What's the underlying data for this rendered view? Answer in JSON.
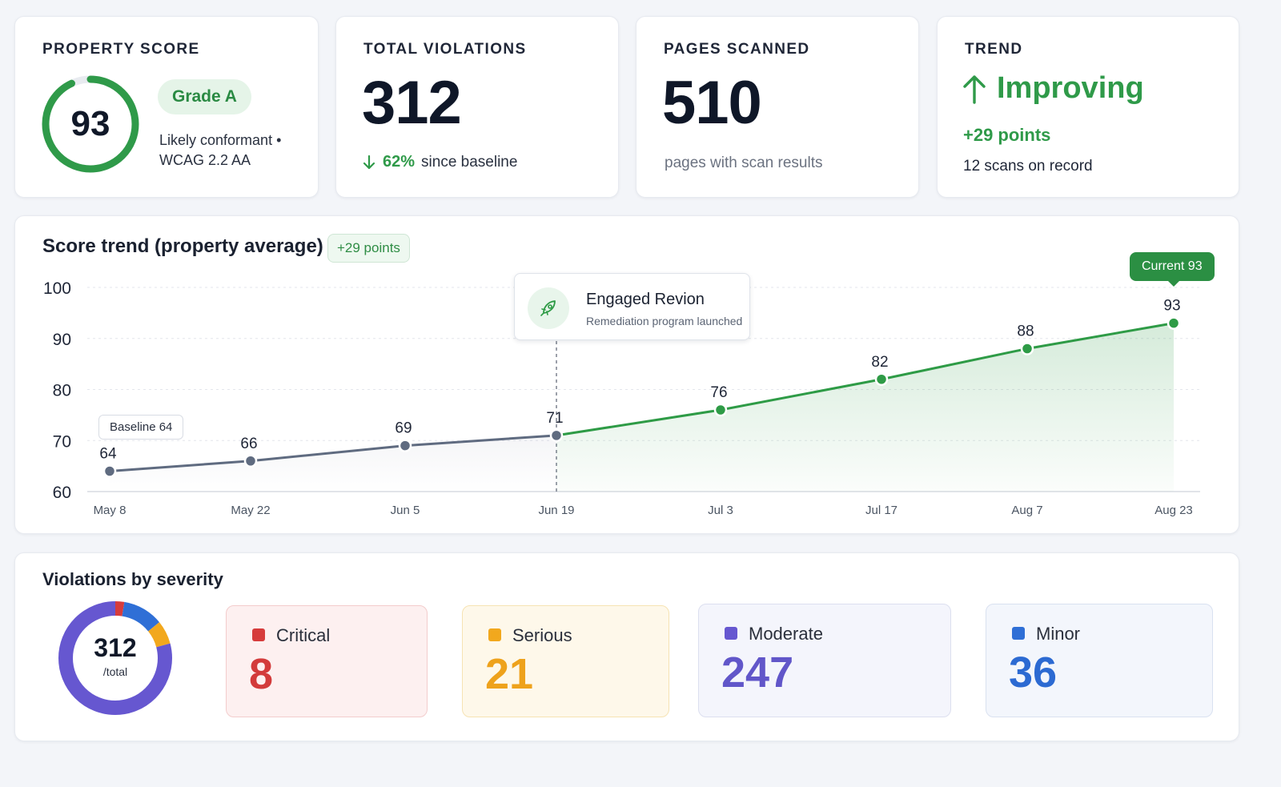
{
  "property_score": {
    "label": "PROPERTY SCORE",
    "score": "93",
    "score_value": 93,
    "grade": "Grade A",
    "status_line1": "Likely conformant •",
    "status_line2": "WCAG 2.2 AA"
  },
  "total_violations": {
    "label": "TOTAL VIOLATIONS",
    "value": "312",
    "change_pct": "62%",
    "change_text": "since baseline"
  },
  "pages_scanned": {
    "label": "PAGES SCANNED",
    "value": "510",
    "sub": "pages with scan results"
  },
  "trend": {
    "label": "TREND",
    "status": "Improving",
    "points": "+29 points",
    "scans": "12 scans on record"
  },
  "score_trend": {
    "title": "Score trend (property average)",
    "badge": "+29 points",
    "annotation_title": "Engaged Revion",
    "annotation_sub": "Remediation program launched",
    "baseline_label": "Baseline 64",
    "current_label": "Current 93"
  },
  "chart_data": {
    "type": "line",
    "x": [
      "May 8",
      "May 22",
      "Jun 5",
      "Jun 19",
      "Jul 3",
      "Jul 17",
      "Aug 7",
      "Aug 23"
    ],
    "series": [
      {
        "values": [
          64,
          66,
          69,
          71,
          76,
          82,
          88,
          93
        ]
      }
    ],
    "ylim": [
      60,
      100
    ],
    "yticks": [
      100,
      90,
      80,
      70,
      60
    ],
    "grid": true,
    "colors": {
      "before": "#5f6b80",
      "after": "#2e9b46"
    }
  },
  "severity": {
    "title": "Violations by severity",
    "total": "312",
    "total_label": "/total",
    "items": [
      {
        "name": "Critical",
        "value": "8",
        "count": 8,
        "color": "#d63c3c"
      },
      {
        "name": "Serious",
        "value": "21",
        "count": 21,
        "color": "#f2a81d"
      },
      {
        "name": "Moderate",
        "value": "247",
        "count": 247,
        "color": "#6657d0"
      },
      {
        "name": "Minor",
        "value": "36",
        "count": 36,
        "color": "#2f6fd6"
      }
    ]
  }
}
